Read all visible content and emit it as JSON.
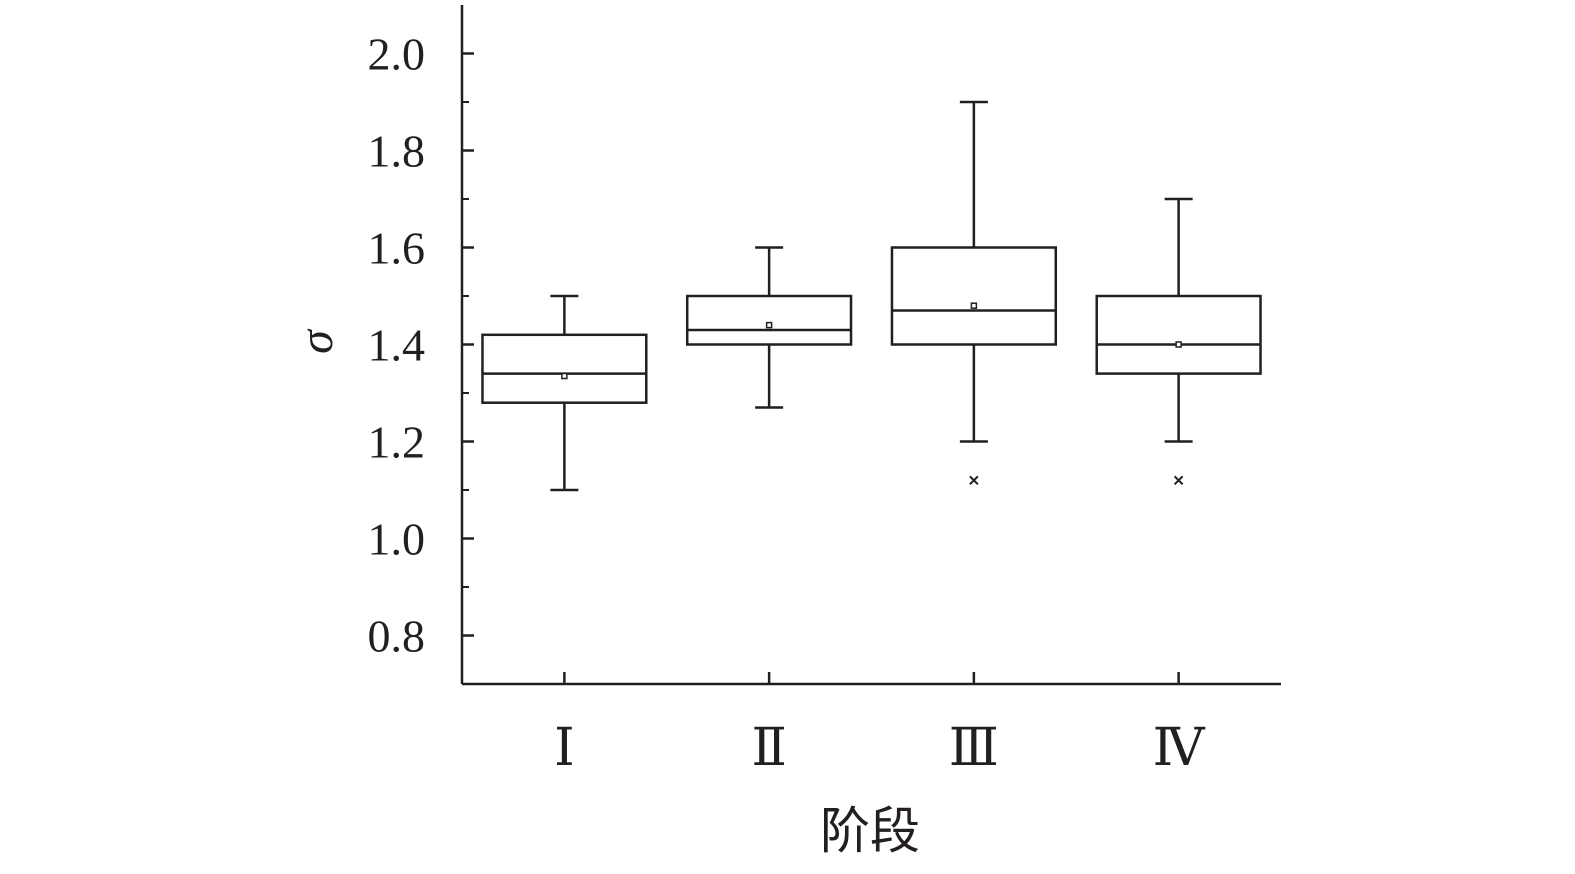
{
  "chart_data": {
    "type": "box",
    "x_label": "阶段",
    "y_label": "σ",
    "categories": [
      "Ⅰ",
      "Ⅱ",
      "Ⅲ",
      "Ⅳ"
    ],
    "series": [
      {
        "color": "#231f20",
        "whisker_low": [
          1.1,
          1.27,
          1.2,
          1.2
        ],
        "q1": [
          1.28,
          1.4,
          1.4,
          1.34
        ],
        "median": [
          1.34,
          1.43,
          1.47,
          1.4
        ],
        "q3": [
          1.42,
          1.5,
          1.6,
          1.5
        ],
        "whisker_high": [
          1.5,
          1.6,
          1.9,
          1.7
        ],
        "mean": [
          1.335,
          1.44,
          1.48,
          1.4
        ],
        "outliers": [
          [],
          [],
          [
            1.12
          ],
          [
            1.12
          ]
        ]
      }
    ],
    "ylim": [
      0.7,
      2.1
    ],
    "yticks": [
      0.8,
      {
        "value": 1,
        "label": "1.0"
      },
      1.2,
      1.4,
      1.6,
      1.8,
      {
        "value": 2,
        "label": "2.0"
      }
    ],
    "yminorticks": [
      0.9,
      1.1,
      1.3,
      1.5,
      1.7,
      1.9
    ]
  }
}
